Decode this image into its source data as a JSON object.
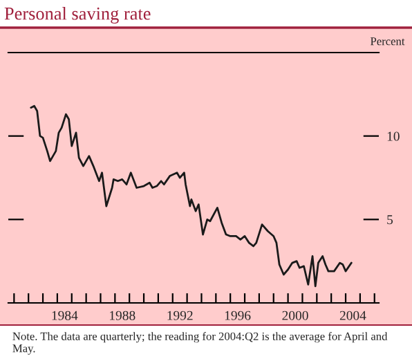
{
  "chart_data": {
    "type": "line",
    "title": "Personal saving rate",
    "ylabel": "Percent",
    "annotations": [
      "Note. The data are quarterly; the reading for 2004:Q2 is the average for April and May."
    ],
    "x": [
      1982.17,
      1982.4,
      1982.6,
      1982.8,
      1983.0,
      1983.3,
      1983.5,
      1983.9,
      1984.1,
      1984.3,
      1984.6,
      1984.8,
      1985.0,
      1985.3,
      1985.5,
      1985.8,
      1986.2,
      1986.5,
      1986.9,
      1987.1,
      1987.4,
      1987.8,
      1987.9,
      1988.2,
      1988.5,
      1988.8,
      1989.1,
      1989.5,
      1990.0,
      1990.4,
      1990.6,
      1990.9,
      1991.2,
      1991.4,
      1991.8,
      1992.3,
      1992.5,
      1992.8,
      1992.9,
      1993.2,
      1993.3,
      1993.6,
      1993.8,
      1994.1,
      1994.4,
      1994.6,
      1995.1,
      1995.4,
      1995.7,
      1996.0,
      1996.4,
      1996.7,
      1997.0,
      1997.3,
      1997.6,
      1997.8,
      1998.2,
      1998.6,
      1999.0,
      1999.2,
      1999.4,
      1999.7,
      2000.0,
      2000.3,
      2000.6,
      2000.8,
      2001.1,
      2001.4,
      2001.7,
      2001.9,
      2002.1,
      2002.4,
      2002.6,
      2002.8,
      2003.2,
      2003.6,
      2003.8,
      2004.0,
      2004.4
    ],
    "series": [
      {
        "color": "#1a1a1a",
        "values": [
          11.7,
          11.8,
          11.5,
          10.0,
          9.9,
          9.1,
          8.5,
          9.1,
          10.2,
          10.5,
          11.3,
          11.0,
          9.4,
          10.2,
          8.7,
          8.2,
          8.8,
          8.2,
          7.3,
          7.8,
          5.8,
          6.9,
          7.4,
          7.3,
          7.4,
          7.1,
          7.8,
          6.9,
          7.0,
          7.2,
          6.9,
          7.0,
          7.3,
          7.1,
          7.6,
          7.8,
          7.5,
          7.8,
          7.1,
          5.8,
          6.2,
          5.5,
          5.9,
          4.1,
          5.0,
          4.9,
          5.7,
          4.8,
          4.1,
          4.0,
          4.0,
          3.8,
          4.0,
          3.6,
          3.4,
          3.6,
          4.7,
          4.3,
          4.0,
          3.6,
          2.3,
          1.7,
          2.0,
          2.4,
          2.5,
          2.1,
          2.2,
          1.1,
          2.8,
          1.0,
          2.4,
          2.8,
          2.3,
          1.9,
          1.9,
          2.4,
          2.3,
          1.9,
          2.4
        ]
      }
    ],
    "xlim": [
      1980.6,
      2006.3
    ],
    "ylim": [
      0,
      15
    ],
    "yticks": [
      5,
      10
    ],
    "xticks": [
      {
        "value": 1981,
        "label": null
      },
      {
        "value": 1982,
        "label": null
      },
      {
        "value": 1983,
        "label": null
      },
      {
        "value": 1984,
        "label": null
      },
      {
        "value": 1985,
        "label": null
      },
      {
        "value": 1986,
        "label": null
      },
      {
        "value": 1987,
        "label": null
      },
      {
        "value": 1988,
        "label": null
      },
      {
        "value": 1989,
        "label": null
      },
      {
        "value": 1990,
        "label": null
      },
      {
        "value": 1991,
        "label": null
      },
      {
        "value": 1992,
        "label": null
      },
      {
        "value": 1993,
        "label": null
      },
      {
        "value": 1994,
        "label": null
      },
      {
        "value": 1995,
        "label": null
      },
      {
        "value": 1996,
        "label": null
      },
      {
        "value": 1997,
        "label": null
      },
      {
        "value": 1998,
        "label": null
      },
      {
        "value": 1999,
        "label": null
      },
      {
        "value": 2000,
        "label": null
      },
      {
        "value": 2001,
        "label": null
      },
      {
        "value": 2002,
        "label": null
      },
      {
        "value": 2003,
        "label": null
      },
      {
        "value": 2004,
        "label": null
      },
      {
        "value": 2005,
        "label": null
      },
      {
        "value": 2006,
        "label": null
      },
      {
        "value": 1984.5,
        "label": "1984"
      },
      {
        "value": 1988.5,
        "label": "1988"
      },
      {
        "value": 1992.5,
        "label": "1992"
      },
      {
        "value": 1996.5,
        "label": "1996"
      },
      {
        "value": 2000.5,
        "label": "2000"
      },
      {
        "value": 2004.5,
        "label": "2004"
      }
    ],
    "grid": false,
    "legend": false,
    "line_style": "solid",
    "marker": "none"
  }
}
